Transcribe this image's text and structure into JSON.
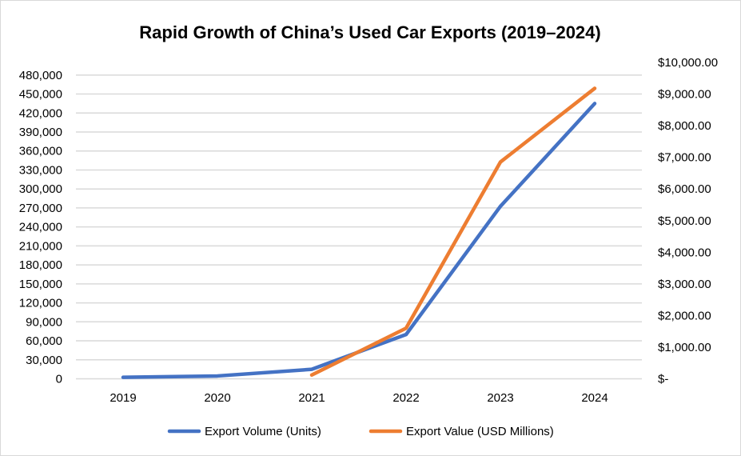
{
  "chart_data": {
    "type": "line",
    "title": "Rapid Growth of China’s Used Car Exports (2019–2024)",
    "categories": [
      "2019",
      "2020",
      "2021",
      "2022",
      "2023",
      "2024"
    ],
    "series": [
      {
        "name": "Export Volume (Units)",
        "axis": "left",
        "color": "#4472C4",
        "values": [
          2300,
          4500,
          15000,
          70000,
          272500,
          435000
        ]
      },
      {
        "name": "Export Value (USD Millions)",
        "axis": "right",
        "color": "#ED7D31",
        "values": [
          null,
          null,
          120,
          1600,
          6850,
          9180
        ]
      }
    ],
    "y_left": {
      "range": [
        0,
        500000
      ],
      "tick_labels": [
        "0",
        "30,000",
        "60,000",
        "90,000",
        "120,000",
        "150,000",
        "180,000",
        "210,000",
        "240,000",
        "270,000",
        "300,000",
        "330,000",
        "360,000",
        "390,000",
        "420,000",
        "450,000",
        "480,000"
      ]
    },
    "y_right": {
      "range": [
        0,
        10000
      ],
      "tick_labels": [
        "$-",
        "$1,000.00",
        "$2,000.00",
        "$3,000.00",
        "$4,000.00",
        "$5,000.00",
        "$6,000.00",
        "$7,000.00",
        "$8,000.00",
        "$9,000.00",
        "$10,000.00"
      ]
    },
    "grid": true,
    "legend": "bottom"
  }
}
